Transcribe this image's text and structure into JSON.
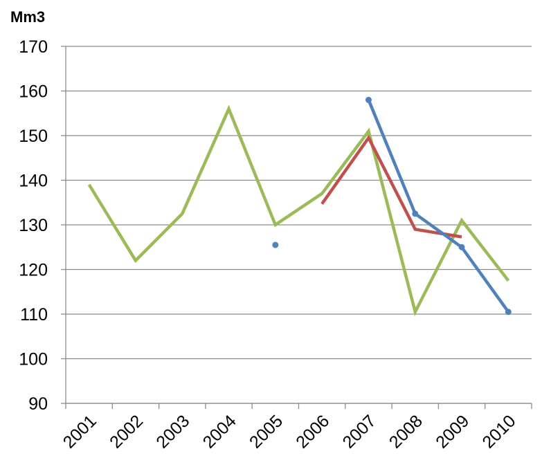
{
  "chart_data": {
    "type": "line",
    "title": "",
    "xlabel": "",
    "ylabel": "Mm3",
    "categories": [
      "2001",
      "2002",
      "2003",
      "2004",
      "2005",
      "2006",
      "2007",
      "2008",
      "2009",
      "2010"
    ],
    "ylim": [
      90,
      170
    ],
    "yticks": [
      90,
      100,
      110,
      120,
      130,
      140,
      150,
      160,
      170
    ],
    "grid": true,
    "legend": "none",
    "series": [
      {
        "color": "#9bbb59",
        "values": [
          139,
          122,
          132.5,
          156,
          130,
          137,
          151,
          110.5,
          131,
          117.5
        ]
      },
      {
        "color": "#c0504d",
        "values": [
          null,
          null,
          null,
          null,
          null,
          134.7,
          149.5,
          129,
          127.3,
          null
        ]
      },
      {
        "color": "#4f81bd",
        "values": [
          null,
          null,
          null,
          null,
          125.5,
          null,
          158,
          132.5,
          125,
          110.5
        ]
      }
    ]
  }
}
